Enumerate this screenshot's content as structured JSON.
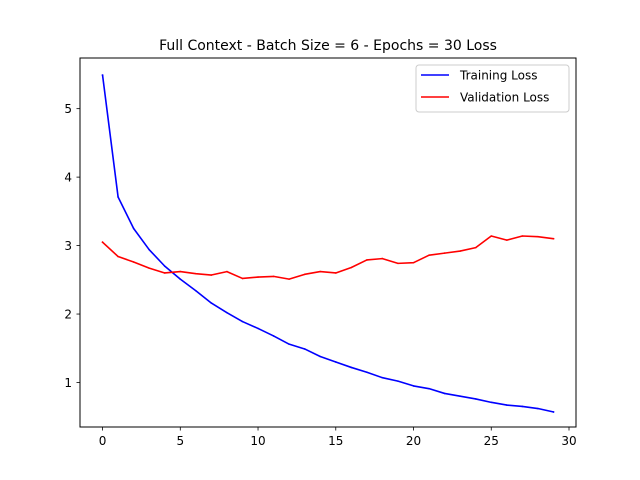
{
  "chart_data": {
    "type": "line",
    "title": "Full Context - Batch Size = 6 - Epochs = 30 Loss",
    "xlabel": "",
    "ylabel": "",
    "xlim": [
      -1.45,
      30.45
    ],
    "ylim": [
      0.35,
      5.74
    ],
    "xticks": [
      0,
      5,
      10,
      15,
      20,
      25,
      30
    ],
    "yticks": [
      1,
      2,
      3,
      4,
      5
    ],
    "grid": false,
    "legend_position": "upper right",
    "x": [
      0,
      1,
      2,
      3,
      4,
      5,
      6,
      7,
      8,
      9,
      10,
      11,
      12,
      13,
      14,
      15,
      16,
      17,
      18,
      19,
      20,
      21,
      22,
      23,
      24,
      25,
      26,
      27,
      28,
      29
    ],
    "series": [
      {
        "name": "Training Loss",
        "color": "#0000ff",
        "values": [
          5.49,
          3.71,
          3.25,
          2.94,
          2.7,
          2.51,
          2.34,
          2.16,
          2.02,
          1.89,
          1.79,
          1.68,
          1.56,
          1.49,
          1.38,
          1.3,
          1.22,
          1.15,
          1.07,
          1.02,
          0.95,
          0.91,
          0.84,
          0.8,
          0.76,
          0.71,
          0.67,
          0.65,
          0.62,
          0.57
        ]
      },
      {
        "name": "Validation Loss",
        "color": "#ff0000",
        "values": [
          3.05,
          2.84,
          2.76,
          2.67,
          2.6,
          2.62,
          2.59,
          2.57,
          2.62,
          2.52,
          2.54,
          2.55,
          2.51,
          2.58,
          2.62,
          2.6,
          2.68,
          2.79,
          2.81,
          2.74,
          2.75,
          2.86,
          2.89,
          2.92,
          2.97,
          3.14,
          3.08,
          3.14,
          3.13,
          3.1
        ]
      }
    ]
  }
}
